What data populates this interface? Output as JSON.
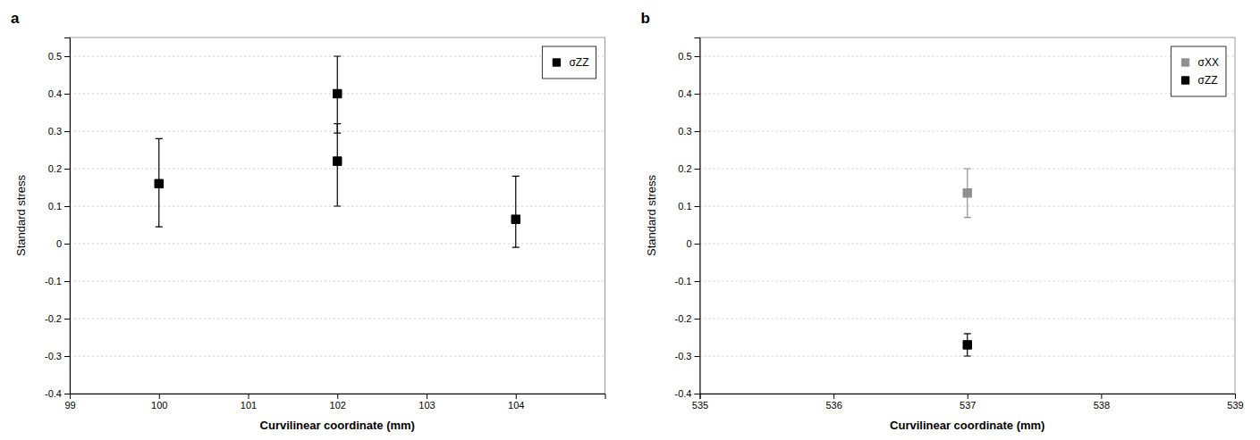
{
  "chart_data": [
    {
      "type": "scatter",
      "title": "a",
      "xlabel": "Curvilinear coordinate (mm)",
      "ylabel": "Standard stress",
      "series": [
        {
          "name": "σZZ",
          "color": "#000000",
          "marker": "square",
          "x": [
            100,
            102,
            102,
            104
          ],
          "values": [
            0.16,
            0.4,
            0.22,
            0.065
          ],
          "error_lower": [
            0.115,
            0.105,
            0.12,
            0.075
          ],
          "error_upper": [
            0.12,
            0.1,
            0.1,
            0.115
          ]
        }
      ],
      "xlim": [
        99,
        105
      ],
      "xticks": [
        99,
        100,
        101,
        102,
        103,
        104
      ],
      "ylim": [
        -0.4,
        0.55
      ],
      "yticks": [
        -0.4,
        -0.3,
        -0.2,
        -0.1,
        0.0,
        0.1,
        0.2,
        0.3,
        0.4,
        0.5
      ],
      "grid": "y",
      "legend": "upper right"
    },
    {
      "type": "scatter",
      "title": "b",
      "xlabel": "Curvilinear coordinate (mm)",
      "ylabel": "Standard stress",
      "series": [
        {
          "name": "σXX",
          "color": "#909090",
          "marker": "square",
          "x": [
            537
          ],
          "values": [
            0.135
          ],
          "error_lower": [
            0.065
          ],
          "error_upper": [
            0.065
          ]
        },
        {
          "name": "σZZ",
          "color": "#000000",
          "marker": "square",
          "x": [
            537
          ],
          "values": [
            -0.27
          ],
          "error_lower": [
            0.03
          ],
          "error_upper": [
            0.03
          ]
        }
      ],
      "xlim": [
        535,
        539
      ],
      "xticks": [
        535,
        536,
        537,
        538,
        539
      ],
      "ylim": [
        -0.4,
        0.55
      ],
      "yticks": [
        -0.4,
        -0.3,
        -0.2,
        -0.1,
        0.0,
        0.1,
        0.2,
        0.3,
        0.4,
        0.5
      ],
      "grid": "y",
      "legend": "upper right"
    }
  ]
}
